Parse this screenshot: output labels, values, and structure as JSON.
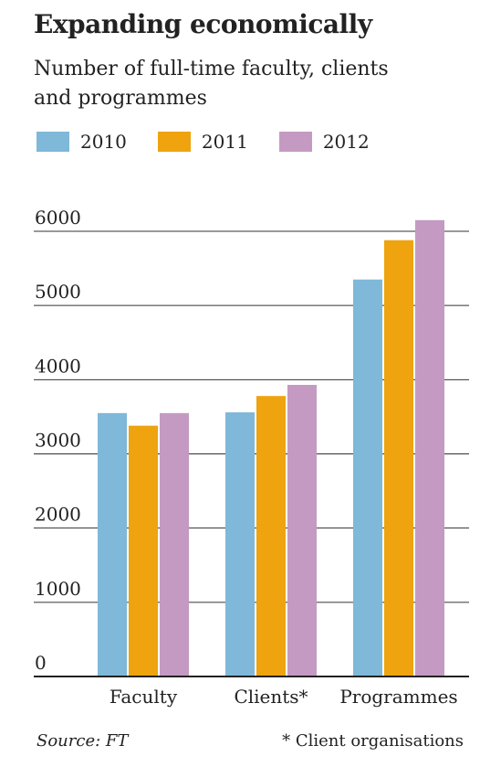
{
  "chart_data": {
    "type": "bar",
    "title": "Expanding economically",
    "subtitle": "Number of full-time faculty, clients and programmes",
    "categories": [
      "Faculty",
      "Clients*",
      "Programmes"
    ],
    "series": [
      {
        "name": "2010",
        "color": "#7fb8d8",
        "values": [
          3550,
          3560,
          5350
        ]
      },
      {
        "name": "2011",
        "color": "#eea30f",
        "values": [
          3380,
          3780,
          5880
        ]
      },
      {
        "name": "2012",
        "color": "#c49ac2",
        "values": [
          3550,
          3930,
          6150
        ]
      }
    ],
    "ylim": [
      0,
      6000
    ],
    "yticks": [
      0,
      1000,
      2000,
      3000,
      4000,
      5000,
      6000
    ],
    "ytick_labels": [
      "0",
      "1000",
      "2000",
      "3000",
      "4000",
      "5000",
      "6000"
    ],
    "grid": true,
    "legend_position": "top-left",
    "xlabel": "",
    "ylabel": ""
  },
  "source_text": "Source: FT",
  "footnote_text": "* Client organisations"
}
